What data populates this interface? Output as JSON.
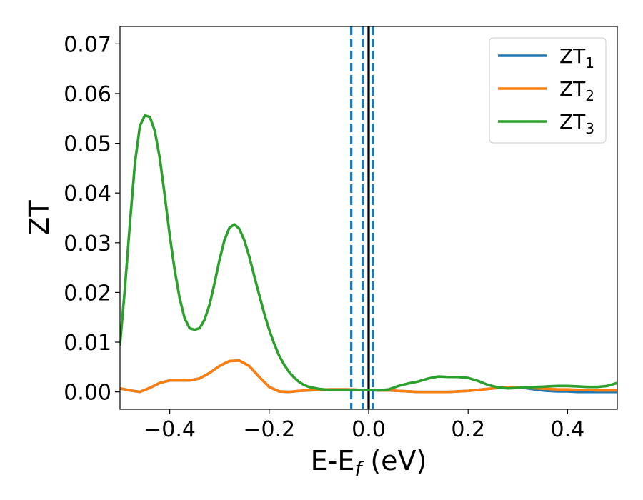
{
  "chart_data": {
    "type": "line",
    "xlabel": "E-E",
    "xlabel_subscript": "f",
    "xlabel_unit": " (eV)",
    "ylabel": "ZT",
    "xlim": [
      -0.5,
      0.5
    ],
    "ylim": [
      -0.0035,
      0.0735
    ],
    "xticks": [
      -0.4,
      -0.2,
      0.0,
      0.2,
      0.4
    ],
    "xtick_labels": [
      "−0.4",
      "−0.2",
      "0.0",
      "0.2",
      "0.4"
    ],
    "yticks": [
      0.0,
      0.01,
      0.02,
      0.03,
      0.04,
      0.05,
      0.06,
      0.07
    ],
    "ytick_labels": [
      "0.00",
      "0.01",
      "0.02",
      "0.03",
      "0.04",
      "0.05",
      "0.06",
      "0.07"
    ],
    "grid": false,
    "legend_position": "top-right",
    "vertical_lines": [
      {
        "x": -0.035,
        "style": "dashed",
        "color": "#1f77b4"
      },
      {
        "x": -0.012,
        "style": "dashed",
        "color": "#1f77b4"
      },
      {
        "x": 0.0,
        "style": "solid",
        "color": "#000000"
      },
      {
        "x": 0.008,
        "style": "dashed",
        "color": "#1f77b4"
      }
    ],
    "series": [
      {
        "name": "ZT",
        "subscript": "1",
        "color": "#1f77b4",
        "x": [
          -0.5,
          -0.48,
          -0.46,
          -0.44,
          -0.42,
          -0.4,
          -0.38,
          -0.36,
          -0.34,
          -0.32,
          -0.3,
          -0.28,
          -0.26,
          -0.24,
          -0.22,
          -0.2,
          -0.18,
          -0.16,
          -0.14,
          -0.12,
          -0.1,
          -0.08,
          -0.06,
          -0.04,
          -0.02,
          0.0,
          0.02,
          0.04,
          0.06,
          0.08,
          0.1,
          0.12,
          0.14,
          0.16,
          0.18,
          0.2,
          0.22,
          0.24,
          0.26,
          0.28,
          0.3,
          0.32,
          0.34,
          0.36,
          0.38,
          0.4,
          0.42,
          0.44,
          0.46,
          0.48,
          0.5
        ],
        "y": [
          0.0007,
          0.0003,
          0.0,
          0.0008,
          0.0018,
          0.0023,
          0.0023,
          0.0023,
          0.0027,
          0.0038,
          0.0052,
          0.0062,
          0.0063,
          0.0052,
          0.003,
          0.001,
          0.0001,
          0.0,
          0.0002,
          0.0003,
          0.0004,
          0.0005,
          0.0005,
          0.0005,
          0.0004,
          0.0004,
          0.0003,
          0.0003,
          0.0002,
          0.0001,
          0.0,
          0.0,
          0.0,
          0.0,
          0.0001,
          0.0002,
          0.0004,
          0.0006,
          0.0008,
          0.0009,
          0.0009,
          0.0007,
          0.0004,
          0.0002,
          0.0001,
          0.0001,
          0.0,
          0.0,
          0.0,
          0.0,
          0.0
        ]
      },
      {
        "name": "ZT",
        "subscript": "2",
        "color": "#ff7f0e",
        "x": [
          -0.5,
          -0.48,
          -0.46,
          -0.44,
          -0.42,
          -0.4,
          -0.38,
          -0.36,
          -0.34,
          -0.32,
          -0.3,
          -0.28,
          -0.26,
          -0.24,
          -0.22,
          -0.2,
          -0.18,
          -0.16,
          -0.14,
          -0.12,
          -0.1,
          -0.08,
          -0.06,
          -0.04,
          -0.02,
          0.0,
          0.02,
          0.04,
          0.06,
          0.08,
          0.1,
          0.12,
          0.14,
          0.16,
          0.18,
          0.2,
          0.22,
          0.24,
          0.26,
          0.28,
          0.3,
          0.32,
          0.34,
          0.36,
          0.38,
          0.4,
          0.42,
          0.44,
          0.46,
          0.48,
          0.5
        ],
        "y": [
          0.0007,
          0.0003,
          0.0,
          0.0008,
          0.0018,
          0.0023,
          0.0023,
          0.0023,
          0.0027,
          0.0038,
          0.0052,
          0.0062,
          0.0063,
          0.0052,
          0.003,
          0.001,
          0.0001,
          0.0,
          0.0002,
          0.0003,
          0.0004,
          0.0005,
          0.0005,
          0.0005,
          0.0004,
          0.0004,
          0.0003,
          0.0003,
          0.0002,
          0.0001,
          0.0,
          0.0,
          0.0,
          0.0,
          0.0001,
          0.0002,
          0.0004,
          0.0006,
          0.0008,
          0.0009,
          0.0009,
          0.0008,
          0.0007,
          0.0006,
          0.0005,
          0.0005,
          0.0004,
          0.0004,
          0.0003,
          0.0003,
          0.0003
        ]
      },
      {
        "name": "ZT",
        "subscript": "3",
        "color": "#2ca02c",
        "x": [
          -0.5,
          -0.49,
          -0.48,
          -0.47,
          -0.46,
          -0.45,
          -0.44,
          -0.43,
          -0.42,
          -0.41,
          -0.4,
          -0.39,
          -0.38,
          -0.37,
          -0.36,
          -0.35,
          -0.34,
          -0.33,
          -0.32,
          -0.31,
          -0.3,
          -0.29,
          -0.28,
          -0.27,
          -0.26,
          -0.25,
          -0.24,
          -0.23,
          -0.22,
          -0.21,
          -0.2,
          -0.19,
          -0.18,
          -0.17,
          -0.16,
          -0.15,
          -0.14,
          -0.13,
          -0.12,
          -0.11,
          -0.1,
          -0.09,
          -0.08,
          -0.07,
          -0.06,
          -0.05,
          -0.04,
          -0.03,
          -0.02,
          -0.01,
          0.0,
          0.02,
          0.04,
          0.06,
          0.08,
          0.1,
          0.12,
          0.14,
          0.16,
          0.18,
          0.2,
          0.22,
          0.24,
          0.26,
          0.28,
          0.3,
          0.32,
          0.34,
          0.36,
          0.38,
          0.4,
          0.42,
          0.44,
          0.46,
          0.48,
          0.5
        ],
        "y": [
          0.0095,
          0.021,
          0.034,
          0.046,
          0.0535,
          0.0556,
          0.0553,
          0.0525,
          0.047,
          0.0395,
          0.0315,
          0.0245,
          0.0188,
          0.0148,
          0.0128,
          0.0125,
          0.0128,
          0.0145,
          0.0175,
          0.0218,
          0.0265,
          0.0305,
          0.033,
          0.0337,
          0.0328,
          0.0305,
          0.0272,
          0.0233,
          0.0195,
          0.0158,
          0.0125,
          0.0097,
          0.0073,
          0.0055,
          0.004,
          0.0029,
          0.002,
          0.0014,
          0.001,
          0.0008,
          0.0006,
          0.0005,
          0.0004,
          0.0004,
          0.0004,
          0.0004,
          0.0004,
          0.0004,
          0.0004,
          0.0004,
          0.0004,
          0.0003,
          0.0005,
          0.0012,
          0.0017,
          0.0021,
          0.0027,
          0.0031,
          0.003,
          0.003,
          0.0028,
          0.0022,
          0.0014,
          0.0009,
          0.0007,
          0.0008,
          0.0009,
          0.001,
          0.0011,
          0.0012,
          0.0012,
          0.0011,
          0.001,
          0.001,
          0.0012,
          0.0018
        ]
      }
    ]
  },
  "colors": {
    "axis": "#000000",
    "legend_border": "#cccccc"
  }
}
